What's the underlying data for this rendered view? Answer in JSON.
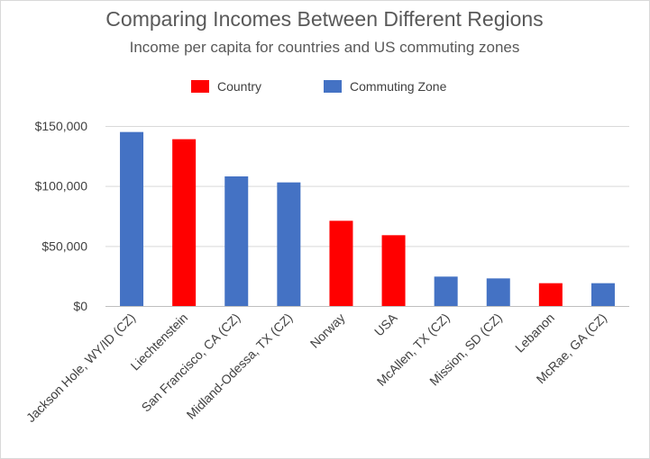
{
  "chart_data": {
    "type": "bar",
    "title": "Comparing Incomes Between Different Regions",
    "subtitle": "Income per capita for countries and US commuting zones",
    "categories": [
      "Jackson Hole, WY/ID (CZ)",
      "Liechtenstein",
      "San Francisco, CA (CZ)",
      "Midland-Odessa, TX (CZ)",
      "Norway",
      "USA",
      "McAllen, TX (CZ)",
      "Mission, SD (CZ)",
      "Lebanon",
      "McRae, GA (CZ)"
    ],
    "values": [
      145000,
      139000,
      108000,
      103000,
      71000,
      59000,
      24500,
      23000,
      19000,
      19000
    ],
    "groups": [
      "Commuting Zone",
      "Country",
      "Commuting Zone",
      "Commuting Zone",
      "Country",
      "Country",
      "Commuting Zone",
      "Commuting Zone",
      "Country",
      "Commuting Zone"
    ],
    "legend": [
      {
        "name": "Country",
        "color": "#ff0000"
      },
      {
        "name": "Commuting Zone",
        "color": "#4472c4"
      }
    ],
    "legend_position": "top",
    "y_ticks": [
      0,
      50000,
      100000,
      150000
    ],
    "y_tick_labels": [
      "$0",
      "$50,000",
      "$100,000",
      "$150,000"
    ],
    "ylim": [
      0,
      150000
    ],
    "grid": true,
    "xlabel": "",
    "ylabel": ""
  }
}
